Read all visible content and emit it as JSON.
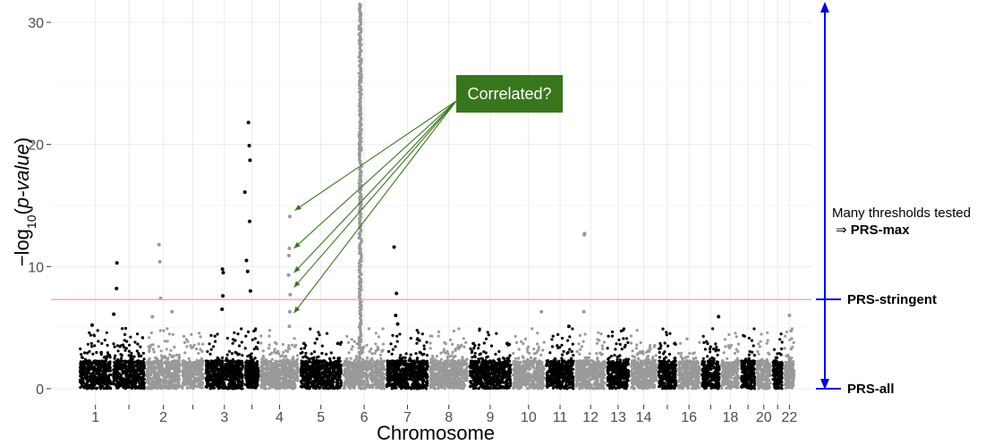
{
  "chart_data": {
    "type": "scatter",
    "subtype": "manhattan",
    "xlabel": "Chromosome",
    "ylabel": "-log10(p-value)",
    "ylim": [
      0,
      31.5
    ],
    "y_ticks": [
      0,
      10,
      20,
      30
    ],
    "grid": true,
    "threshold_line": {
      "value": 7.3,
      "color": "#ff9999"
    },
    "chromosomes": [
      {
        "label": "1",
        "start": 0,
        "end": 8.5,
        "color": "#000000"
      },
      {
        "label": "",
        "start": 8.5,
        "end": 17,
        "color": "#000000"
      },
      {
        "label": "2",
        "start": 17,
        "end": 26,
        "color": "#999999"
      },
      {
        "label": "",
        "start": 26,
        "end": 32,
        "color": "#999999"
      },
      {
        "label": "3",
        "start": 32,
        "end": 42,
        "color": "#000000"
      },
      {
        "label": "",
        "start": 42,
        "end": 46,
        "color": "#000000"
      },
      {
        "label": "4",
        "start": 46,
        "end": 56,
        "color": "#999999"
      },
      {
        "label": "5",
        "start": 56,
        "end": 67,
        "color": "#000000"
      },
      {
        "label": "6",
        "start": 67,
        "end": 78,
        "color": "#999999"
      },
      {
        "label": "7",
        "start": 78,
        "end": 89,
        "color": "#000000"
      },
      {
        "label": "8",
        "start": 89,
        "end": 99,
        "color": "#999999"
      },
      {
        "label": "9",
        "start": 99,
        "end": 110,
        "color": "#000000"
      },
      {
        "label": "10",
        "start": 110,
        "end": 118.5,
        "color": "#999999"
      },
      {
        "label": "11",
        "start": 118.5,
        "end": 126,
        "color": "#000000"
      },
      {
        "label": "12",
        "start": 126,
        "end": 134,
        "color": "#999999"
      },
      {
        "label": "13",
        "start": 134,
        "end": 140,
        "color": "#000000"
      },
      {
        "label": "14",
        "start": 140,
        "end": 147,
        "color": "#999999"
      },
      {
        "label": "",
        "start": 147,
        "end": 152,
        "color": "#000000"
      },
      {
        "label": "16",
        "start": 152,
        "end": 158,
        "color": "#999999"
      },
      {
        "label": "",
        "start": 158,
        "end": 163,
        "color": "#000000"
      },
      {
        "label": "18",
        "start": 163,
        "end": 168,
        "color": "#999999"
      },
      {
        "label": "",
        "start": 168,
        "end": 172,
        "color": "#000000"
      },
      {
        "label": "20",
        "start": 172,
        "end": 176,
        "color": "#999999"
      },
      {
        "label": "",
        "start": 176,
        "end": 179,
        "color": "#000000"
      },
      {
        "label": "22",
        "start": 179,
        "end": 182,
        "color": "#999999"
      }
    ],
    "peaks": [
      {
        "x": 3.4,
        "y": 5.2
      },
      {
        "x": 9.7,
        "y": 10.3
      },
      {
        "x": 9.6,
        "y": 8.2
      },
      {
        "x": 8.9,
        "y": 6.1
      },
      {
        "x": 20.4,
        "y": 11.8
      },
      {
        "x": 20.6,
        "y": 10.4
      },
      {
        "x": 20.8,
        "y": 7.4
      },
      {
        "x": 18.7,
        "y": 5.9
      },
      {
        "x": 23.7,
        "y": 6.3
      },
      {
        "x": 36.5,
        "y": 9.8
      },
      {
        "x": 36.7,
        "y": 9.5
      },
      {
        "x": 36.6,
        "y": 7.6
      },
      {
        "x": 36.4,
        "y": 6.5
      },
      {
        "x": 43.1,
        "y": 21.8
      },
      {
        "x": 43.3,
        "y": 19.9
      },
      {
        "x": 42.2,
        "y": 16.1
      },
      {
        "x": 43.5,
        "y": 18.7
      },
      {
        "x": 42.6,
        "y": 10.5
      },
      {
        "x": 43.4,
        "y": 13.7
      },
      {
        "x": 43.6,
        "y": 8.0
      },
      {
        "x": 42.9,
        "y": 9.6
      },
      {
        "x": 53.6,
        "y": 14.1
      },
      {
        "x": 53.5,
        "y": 11.5
      },
      {
        "x": 53.4,
        "y": 10.9
      },
      {
        "x": 53.3,
        "y": 9.3
      },
      {
        "x": 53.7,
        "y": 7.7
      },
      {
        "x": 53.6,
        "y": 6.3
      },
      {
        "x": 53.5,
        "y": 5.1
      },
      {
        "x": 80.1,
        "y": 11.6
      },
      {
        "x": 80.7,
        "y": 7.8
      },
      {
        "x": 80.5,
        "y": 6.0
      },
      {
        "x": 81.0,
        "y": 5.3
      },
      {
        "x": 117.5,
        "y": 6.3
      },
      {
        "x": 124.5,
        "y": 5.1
      },
      {
        "x": 128.4,
        "y": 12.6
      },
      {
        "x": 128.5,
        "y": 12.7
      },
      {
        "x": 128.3,
        "y": 6.3
      },
      {
        "x": 162.5,
        "y": 5.9
      },
      {
        "x": 180.5,
        "y": 6.0
      }
    ],
    "dense_column": {
      "x": 71.5,
      "ymin": 0,
      "ymax": 31.5
    },
    "annotations": {
      "callout_label": "Correlated?",
      "callout_color": "#38761d",
      "arrow_targets": [
        {
          "x": 53.5,
          "y": 14.6
        },
        {
          "x": 53.3,
          "y": 11.5
        },
        {
          "x": 53.3,
          "y": 9.5
        },
        {
          "x": 53.3,
          "y": 8.3
        },
        {
          "x": 53.3,
          "y": 6.2
        }
      ],
      "right_text_line1": "Many thresholds tested",
      "right_text_line2_prefix": "⇒ ",
      "right_text_line2_bold": "PRS-max",
      "marker_stringent": "PRS-stringent",
      "marker_all": "PRS-all",
      "marker_color": "#0000dd"
    }
  }
}
